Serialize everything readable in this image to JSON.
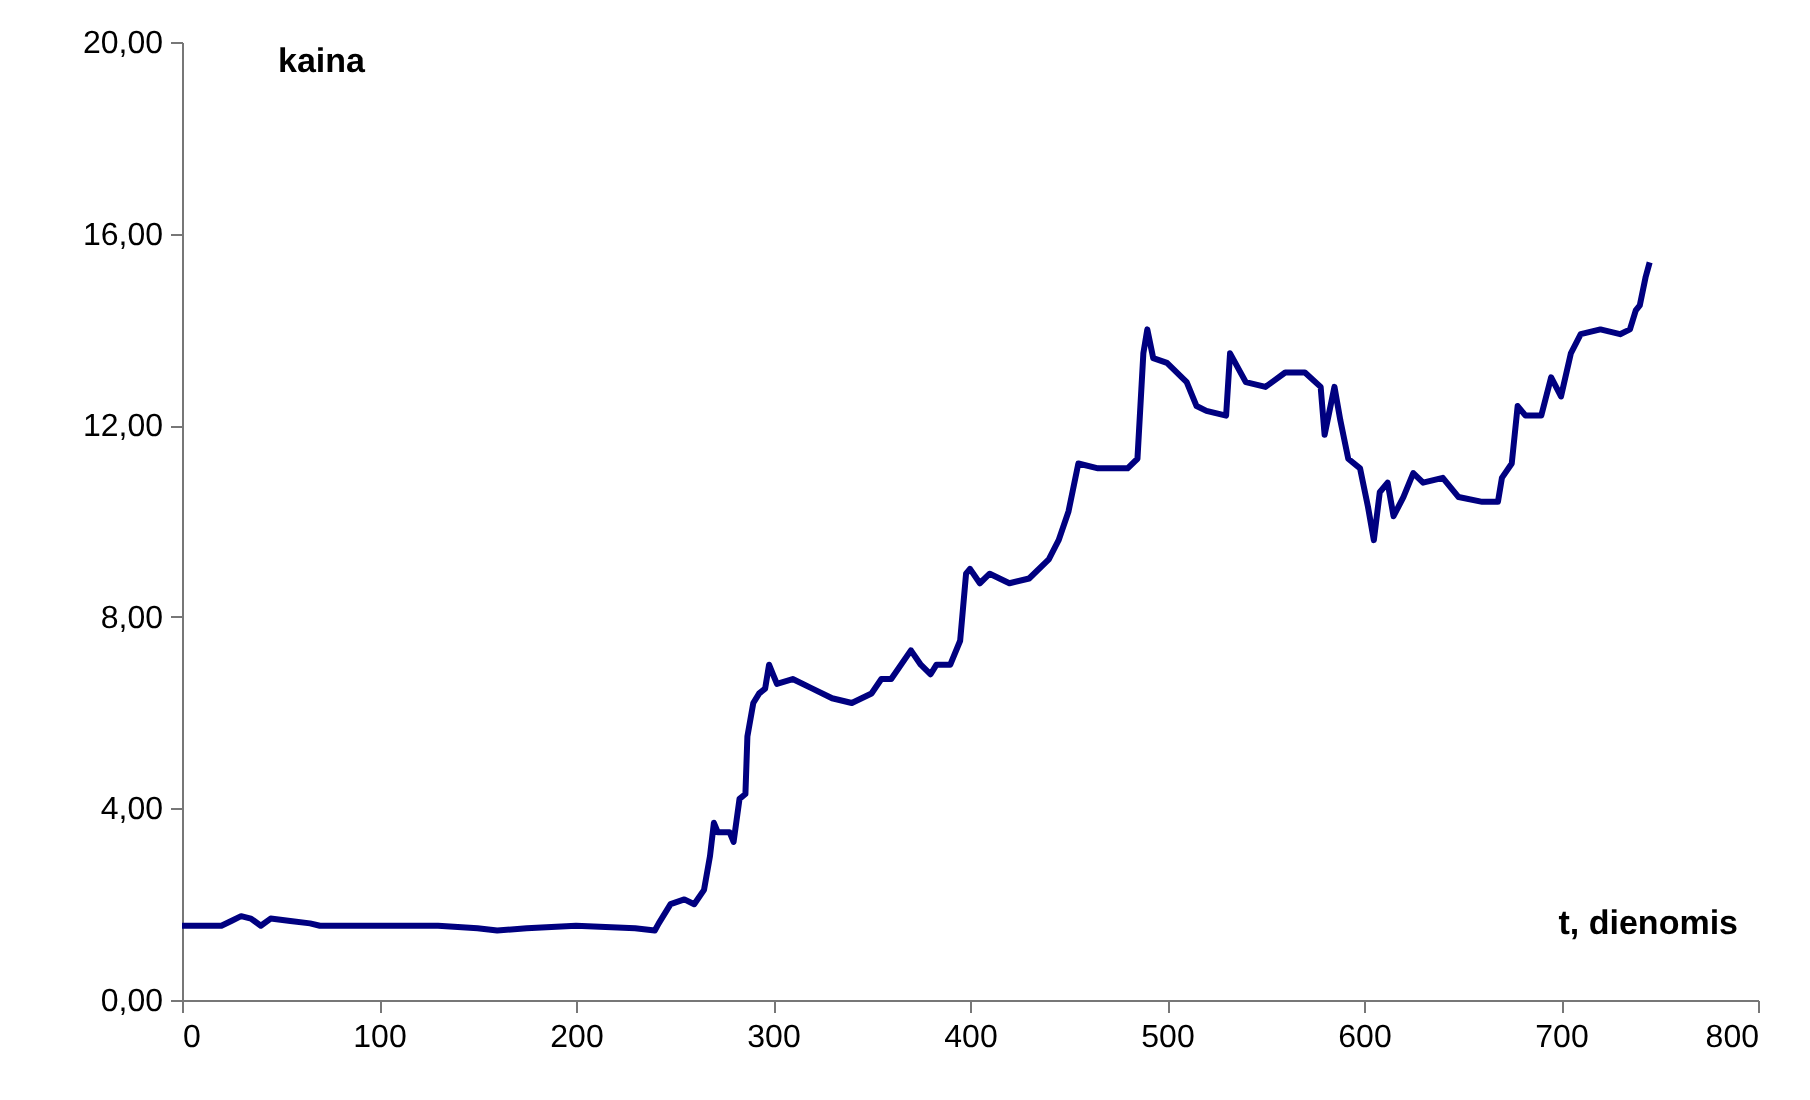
{
  "chart_data": {
    "type": "line",
    "xlabel": "t, dienomis",
    "ylabel": "kaina",
    "xlim": [
      0,
      800
    ],
    "xticks": [
      0,
      100,
      200,
      300,
      400,
      500,
      600,
      700,
      800
    ],
    "ylim": [
      0,
      20
    ],
    "yticks": [
      {
        "value": 0,
        "label": "0,00"
      },
      {
        "value": 4,
        "label": "4,00"
      },
      {
        "value": 8,
        "label": "8,00"
      },
      {
        "value": 12,
        "label": "12,00"
      },
      {
        "value": 16,
        "label": "16,00"
      },
      {
        "value": 20,
        "label": "20,00"
      }
    ],
    "grid": false,
    "marker": "none",
    "line_style": "solid",
    "series": [
      {
        "color": "#000080",
        "x": [
          0,
          20,
          25,
          30,
          35,
          40,
          45,
          55,
          65,
          70,
          100,
          130,
          150,
          160,
          175,
          200,
          230,
          240,
          242,
          248,
          255,
          260,
          265,
          268,
          270,
          272,
          278,
          280,
          283,
          286,
          287,
          290,
          293,
          296,
          298,
          300,
          302,
          310,
          320,
          330,
          340,
          350,
          355,
          360,
          370,
          375,
          380,
          383,
          390,
          395,
          398,
          400,
          405,
          410,
          420,
          430,
          440,
          445,
          450,
          455,
          465,
          480,
          485,
          488,
          490,
          493,
          500,
          510,
          515,
          520,
          530,
          532,
          540,
          550,
          560,
          570,
          578,
          580,
          585,
          588,
          592,
          598,
          602,
          605,
          608,
          612,
          615,
          620,
          625,
          630,
          640,
          648,
          660,
          668,
          670,
          675,
          678,
          682,
          690,
          695,
          700,
          705,
          710,
          720,
          730,
          735,
          738,
          740,
          743,
          745
        ],
        "values": [
          1.55,
          1.55,
          1.65,
          1.75,
          1.7,
          1.55,
          1.7,
          1.65,
          1.6,
          1.55,
          1.55,
          1.55,
          1.5,
          1.45,
          1.5,
          1.55,
          1.5,
          1.45,
          1.6,
          2.0,
          2.1,
          2.0,
          2.3,
          3.0,
          3.7,
          3.5,
          3.5,
          3.3,
          4.2,
          4.3,
          5.5,
          6.2,
          6.4,
          6.5,
          7.0,
          6.8,
          6.6,
          6.7,
          6.5,
          6.3,
          6.2,
          6.4,
          6.7,
          6.7,
          7.3,
          7.0,
          6.8,
          7.0,
          7.0,
          7.5,
          8.9,
          9.0,
          8.7,
          8.9,
          8.7,
          8.8,
          9.2,
          9.6,
          10.2,
          11.2,
          11.1,
          11.1,
          11.3,
          13.5,
          14.0,
          13.4,
          13.3,
          12.9,
          12.4,
          12.3,
          12.2,
          13.5,
          12.9,
          12.8,
          13.1,
          13.1,
          12.8,
          11.8,
          12.8,
          12.1,
          11.3,
          11.1,
          10.3,
          9.6,
          10.6,
          10.8,
          10.1,
          10.5,
          11.0,
          10.8,
          10.9,
          10.5,
          10.4,
          10.4,
          10.9,
          11.2,
          12.4,
          12.2,
          12.2,
          13.0,
          12.6,
          13.5,
          13.9,
          14.0,
          13.9,
          14.0,
          14.4,
          14.5,
          15.1,
          15.4
        ]
      }
    ]
  }
}
